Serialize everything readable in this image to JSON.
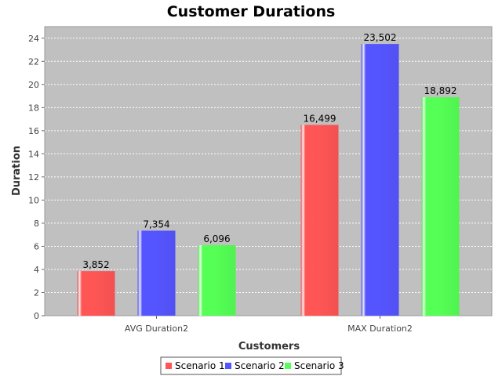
{
  "chart_data": {
    "type": "bar",
    "title": "Customer Durations",
    "xlabel": "Customers",
    "ylabel": "Duration",
    "categories": [
      "AVG Duration2",
      "MAX Duration2"
    ],
    "series": [
      {
        "name": "Scenario 1",
        "color": "#ff5555",
        "values": [
          3.852,
          16.499
        ],
        "labels": [
          "3,852",
          "16,499"
        ]
      },
      {
        "name": "Scenario 2",
        "color": "#5555ff",
        "values": [
          7.354,
          23.502
        ],
        "labels": [
          "7,354",
          "23,502"
        ]
      },
      {
        "name": "Scenario 3",
        "color": "#55ff55",
        "values": [
          6.096,
          18.892
        ],
        "labels": [
          "6,096",
          "18,892"
        ]
      }
    ],
    "ylim": [
      0,
      25
    ],
    "yticks": [
      "0",
      "2",
      "4",
      "6",
      "8",
      "10",
      "12",
      "14",
      "16",
      "18",
      "20",
      "22",
      "24"
    ],
    "grid": true,
    "legend_position": "bottom",
    "plot_background": "#c0c0c0"
  }
}
